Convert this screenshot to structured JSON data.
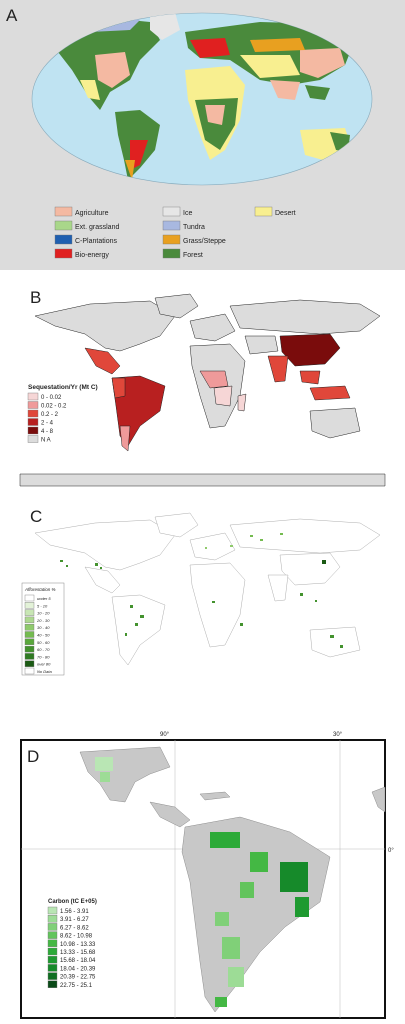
{
  "panels": {
    "a": {
      "label": "A",
      "legend": [
        {
          "label": "Agriculture",
          "color": "#f4b9a2"
        },
        {
          "label": "Ext. grassland",
          "color": "#a9d78a"
        },
        {
          "label": "C-Plantations",
          "color": "#1f5fb0"
        },
        {
          "label": "Bio-energy",
          "color": "#e02020"
        },
        {
          "label": "Ice",
          "color": "#e6e6e6"
        },
        {
          "label": "Tundra",
          "color": "#a8b8e0"
        },
        {
          "label": "Grass/Steppe",
          "color": "#e8a020"
        },
        {
          "label": "Forest",
          "color": "#4a8a3c"
        },
        {
          "label": "Desert",
          "color": "#f8ef90"
        }
      ]
    },
    "b": {
      "label": "B",
      "legend_title": "Sequestation/Yr (Mt C)",
      "legend": [
        {
          "label": "0 - 0.02",
          "color": "#f6d6d6"
        },
        {
          "label": "0.02 - 0.2",
          "color": "#ef9a9a"
        },
        {
          "label": "0.2 - 2",
          "color": "#e0473a"
        },
        {
          "label": "2 - 4",
          "color": "#b82020"
        },
        {
          "label": "4 - 8",
          "color": "#7a0c0c"
        },
        {
          "label": "N A",
          "color": "#dcdcdc"
        }
      ]
    },
    "c": {
      "label": "C",
      "legend_title": "Afforestation %",
      "legend": [
        {
          "label": "under 5",
          "color": "#ffffff"
        },
        {
          "label": "5 - 10",
          "color": "#e3f2d8"
        },
        {
          "label": "10 - 20",
          "color": "#c8e6b4"
        },
        {
          "label": "20 - 30",
          "color": "#add890"
        },
        {
          "label": "30 - 40",
          "color": "#8fca6c"
        },
        {
          "label": "40 - 50",
          "color": "#74bb50"
        },
        {
          "label": "50 - 60",
          "color": "#5aa83c"
        },
        {
          "label": "60 - 70",
          "color": "#43922e"
        },
        {
          "label": "70 - 80",
          "color": "#2f7a22"
        },
        {
          "label": "over 80",
          "color": "#1b5a14"
        },
        {
          "label": "No Data",
          "color": "#ffffff"
        }
      ]
    },
    "d": {
      "label": "D",
      "top_ticks": [
        "90°",
        "30°"
      ],
      "right_tick": "0°",
      "legend_title": "Carbon (tC E+05)",
      "legend": [
        {
          "label": "1.56 - 3.91",
          "color": "#b9e6b4"
        },
        {
          "label": "3.91 - 6.27",
          "color": "#9ddc96"
        },
        {
          "label": "6.27 - 8.62",
          "color": "#80d078"
        },
        {
          "label": "8.62 - 10.98",
          "color": "#62c45c"
        },
        {
          "label": "10.98 - 13.33",
          "color": "#44b844"
        },
        {
          "label": "13.33 - 15.68",
          "color": "#2caa38"
        },
        {
          "label": "15.68 - 18.04",
          "color": "#1e9a30"
        },
        {
          "label": "18.04 - 20.39",
          "color": "#168a2a"
        },
        {
          "label": "20.39 - 22.75",
          "color": "#0f6e22"
        },
        {
          "label": "22.75 - 25.1",
          "color": "#0a4a18"
        }
      ]
    }
  }
}
